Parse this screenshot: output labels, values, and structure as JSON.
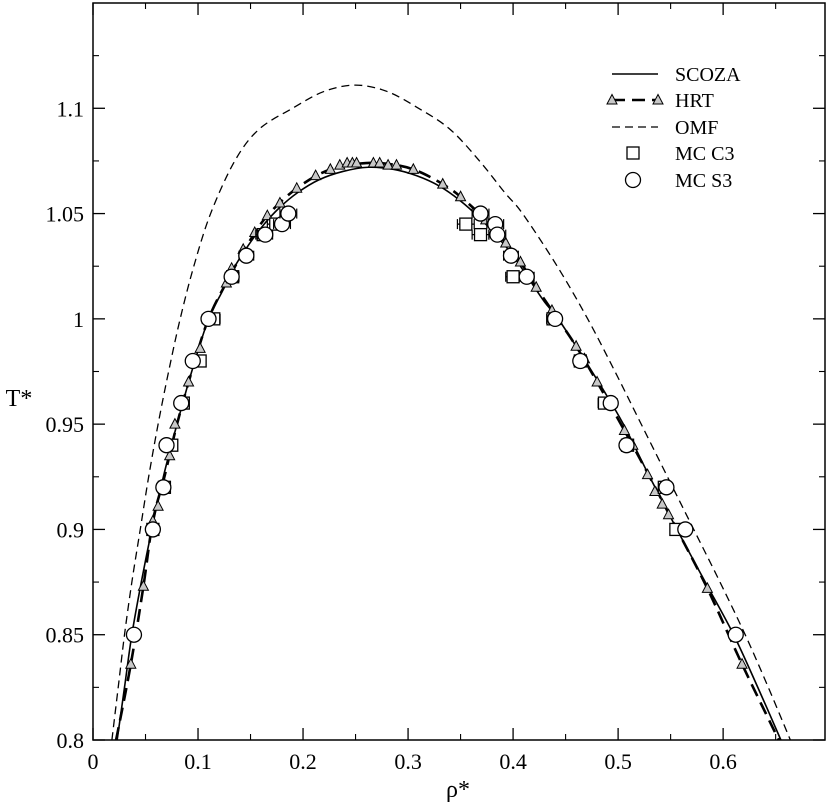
{
  "chart_data": {
    "type": "line",
    "xlabel": "ρ*",
    "ylabel": "T*",
    "xlim": [
      0,
      0.697
    ],
    "ylim": [
      0.8,
      1.15
    ],
    "xticks": [
      0,
      0.1,
      0.2,
      0.3,
      0.4,
      0.5,
      0.6
    ],
    "xtick_labels": [
      "0",
      "0.1",
      "0.2",
      "0.3",
      "0.4",
      "0.5",
      "0.6"
    ],
    "yticks": [
      0.8,
      0.85,
      0.9,
      0.95,
      1,
      1.05,
      1.1
    ],
    "ytick_labels": [
      "0.8",
      "0.85",
      "0.9",
      "0.95",
      "1",
      "1.05",
      "1.1"
    ],
    "grid": false,
    "legend": "top-right",
    "series": [
      {
        "name": "SCOZA",
        "line": "solid",
        "marker": "none",
        "color": "#000000",
        "x": [
          0.023,
          0.03,
          0.037,
          0.046,
          0.056,
          0.067,
          0.08,
          0.094,
          0.11,
          0.122,
          0.134,
          0.148,
          0.163,
          0.178,
          0.195,
          0.215,
          0.238,
          0.262,
          0.286,
          0.308,
          0.33,
          0.35,
          0.368,
          0.385,
          0.4,
          0.415,
          0.43,
          0.443,
          0.465,
          0.485,
          0.505,
          0.53,
          0.556,
          0.583,
          0.61,
          0.633,
          0.655
        ],
        "y": [
          0.8,
          0.825,
          0.85,
          0.875,
          0.9,
          0.925,
          0.95,
          0.975,
          1.0,
          1.012,
          1.024,
          1.035,
          1.045,
          1.053,
          1.06,
          1.066,
          1.07,
          1.072,
          1.071,
          1.068,
          1.063,
          1.056,
          1.048,
          1.039,
          1.03,
          1.019,
          1.008,
          1.0,
          0.983,
          0.967,
          0.95,
          0.925,
          0.9,
          0.875,
          0.85,
          0.825,
          0.8
        ]
      },
      {
        "name": "HRT",
        "line": "thick-dashed",
        "marker": "triangle",
        "color": "#000000",
        "marker_fill": "#c8c8c8",
        "x": [
          0.022,
          0.036,
          0.048,
          0.057,
          0.068,
          0.08,
          0.094,
          0.11,
          0.13,
          0.148,
          0.166,
          0.194,
          0.226,
          0.26,
          0.289,
          0.31,
          0.333,
          0.35,
          0.374,
          0.393,
          0.407,
          0.422,
          0.437,
          0.46,
          0.48,
          0.506,
          0.53,
          0.556,
          0.585,
          0.618,
          0.653
        ],
        "y": [
          0.8,
          0.836,
          0.873,
          0.904,
          0.925,
          0.95,
          0.975,
          1.0,
          1.02,
          1.036,
          1.049,
          1.062,
          1.071,
          1.074,
          1.073,
          1.07,
          1.064,
          1.058,
          1.047,
          1.036,
          1.027,
          1.015,
          1.004,
          0.987,
          0.97,
          0.947,
          0.925,
          0.9,
          0.872,
          0.836,
          0.8
        ],
        "marker_x": [
          0.036,
          0.048,
          0.057,
          0.062,
          0.073,
          0.078,
          0.091,
          0.102,
          0.127,
          0.132,
          0.143,
          0.154,
          0.166,
          0.178,
          0.194,
          0.212,
          0.226,
          0.235,
          0.242,
          0.247,
          0.251,
          0.267,
          0.273,
          0.281,
          0.289,
          0.305,
          0.333,
          0.35,
          0.374,
          0.393,
          0.407,
          0.422,
          0.437,
          0.46,
          0.468,
          0.48,
          0.49,
          0.506,
          0.514,
          0.528,
          0.535,
          0.542,
          0.548,
          0.585,
          0.618
        ],
        "marker_y": [
          0.836,
          0.873,
          0.904,
          0.911,
          0.935,
          0.95,
          0.97,
          0.986,
          1.017,
          1.024,
          1.033,
          1.041,
          1.049,
          1.055,
          1.062,
          1.068,
          1.071,
          1.073,
          1.074,
          1.074,
          1.074,
          1.074,
          1.074,
          1.073,
          1.073,
          1.071,
          1.064,
          1.058,
          1.047,
          1.036,
          1.027,
          1.015,
          1.004,
          0.987,
          0.981,
          0.97,
          0.96,
          0.947,
          0.94,
          0.926,
          0.918,
          0.912,
          0.907,
          0.872,
          0.836
        ]
      },
      {
        "name": "OMF",
        "line": "dashed",
        "marker": "none",
        "color": "#000000",
        "x": [
          0.018,
          0.024,
          0.03,
          0.037,
          0.045,
          0.053,
          0.062,
          0.072,
          0.083,
          0.096,
          0.112,
          0.135,
          0.158,
          0.19,
          0.22,
          0.25,
          0.28,
          0.31,
          0.34,
          0.368,
          0.392,
          0.409,
          0.442,
          0.471,
          0.497,
          0.522,
          0.547,
          0.572,
          0.597,
          0.621,
          0.643,
          0.664
        ],
        "y": [
          0.8,
          0.825,
          0.85,
          0.875,
          0.9,
          0.925,
          0.95,
          0.975,
          1.0,
          1.025,
          1.05,
          1.075,
          1.09,
          1.1,
          1.108,
          1.111,
          1.108,
          1.1,
          1.09,
          1.075,
          1.06,
          1.05,
          1.025,
          1.0,
          0.975,
          0.95,
          0.925,
          0.9,
          0.875,
          0.85,
          0.825,
          0.8
        ]
      },
      {
        "name": "MC C3",
        "line": "none",
        "marker": "square",
        "color": "#000000",
        "marker_fill": "#ffffff",
        "x": [
          0.057,
          0.068,
          0.075,
          0.086,
          0.102,
          0.115,
          0.133,
          0.162,
          0.174,
          0.355,
          0.369,
          0.4,
          0.438,
          0.464,
          0.487,
          0.509,
          0.544,
          0.555
        ],
        "y": [
          0.9,
          0.92,
          0.94,
          0.96,
          0.98,
          1.0,
          1.02,
          1.04,
          1.045,
          1.045,
          1.04,
          1.02,
          1.0,
          0.98,
          0.96,
          0.94,
          0.92,
          0.9
        ],
        "xerr": [
          0.004,
          0.004,
          0.005,
          0.005,
          0.005,
          0.006,
          0.006,
          0.007,
          0.008,
          0.008,
          0.008,
          0.007,
          0.006,
          0.006,
          0.006,
          0.005,
          0.005,
          0.005
        ]
      },
      {
        "name": "MC S3",
        "line": "none",
        "marker": "circle",
        "color": "#000000",
        "marker_fill": "#ffffff",
        "x": [
          0.039,
          0.057,
          0.067,
          0.07,
          0.084,
          0.095,
          0.11,
          0.132,
          0.146,
          0.164,
          0.18,
          0.186,
          0.369,
          0.383,
          0.385,
          0.398,
          0.413,
          0.44,
          0.464,
          0.493,
          0.508,
          0.546,
          0.564,
          0.612
        ],
        "y": [
          0.85,
          0.9,
          0.92,
          0.94,
          0.96,
          0.98,
          1.0,
          1.02,
          1.03,
          1.04,
          1.045,
          1.05,
          1.05,
          1.045,
          1.04,
          1.03,
          1.02,
          1.0,
          0.98,
          0.96,
          0.94,
          0.92,
          0.9,
          0.85
        ],
        "xerr": [
          0.003,
          0.004,
          0.004,
          0.005,
          0.005,
          0.005,
          0.006,
          0.006,
          0.007,
          0.007,
          0.008,
          0.008,
          0.008,
          0.008,
          0.008,
          0.007,
          0.007,
          0.006,
          0.006,
          0.006,
          0.005,
          0.005,
          0.005,
          0.005
        ]
      }
    ]
  }
}
